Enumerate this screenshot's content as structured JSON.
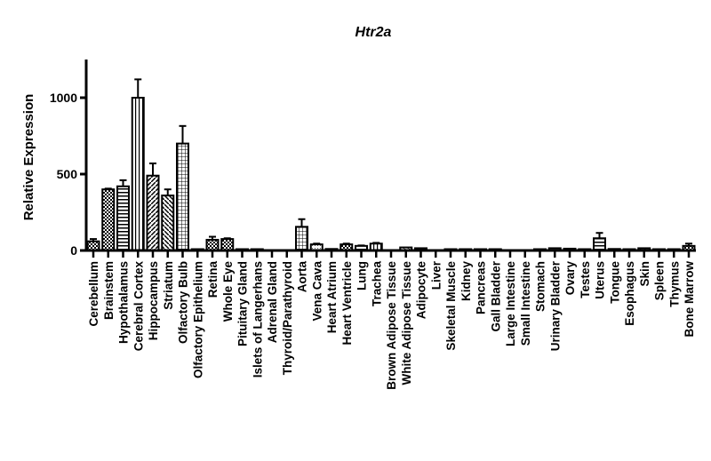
{
  "chart_data": {
    "type": "bar",
    "title": "Htr2a",
    "xlabel": "",
    "ylabel": "Relative Expression",
    "ylim": [
      0,
      1250
    ],
    "yticks": [
      0,
      500,
      1000
    ],
    "ytick_labels": [
      "0",
      "500",
      "1000"
    ],
    "grid": false,
    "categories": [
      "Cerebellum",
      "Brainstem",
      "Hypothalamus",
      "Cerebral Cortex",
      "Hippocampus",
      "Striatum",
      "Olfactory Bulb",
      "Olfactory Epithelium",
      "Retina",
      "Whole Eye",
      "Pituitary Gland",
      "Islets of Langerhans",
      "Adrenal Gland",
      "Thyroid/Parathyroid",
      "Aorta",
      "Vena Cava",
      "Heart Atrium",
      "Heart Ventricle",
      "Lung",
      "Trachea",
      "Brown Adipose Tissue",
      "White Adipose Tissue",
      "Adipocyte",
      "Liver",
      "Skeletal Muscle",
      "Kidney",
      "Pancreas",
      "Gall Bladder",
      "Large Intestine",
      "Small Intestine",
      "Stomach",
      "Urinary Bladder",
      "Ovary",
      "Testes",
      "Uterus",
      "Tongue",
      "Esophagus",
      "Skin",
      "Spleen",
      "Thymus",
      "Bone Marrow"
    ],
    "values": [
      60,
      400,
      420,
      1000,
      490,
      360,
      700,
      2,
      70,
      75,
      2,
      2,
      0,
      0,
      155,
      40,
      10,
      40,
      30,
      45,
      0,
      20,
      15,
      0,
      5,
      3,
      3,
      3,
      0,
      0,
      3,
      15,
      12,
      2,
      80,
      10,
      5,
      15,
      5,
      5,
      30
    ],
    "errors": [
      15,
      5,
      40,
      120,
      80,
      40,
      115,
      1,
      20,
      5,
      1,
      1,
      0,
      0,
      50,
      5,
      2,
      5,
      3,
      5,
      0,
      5,
      3,
      0,
      2,
      1,
      1,
      1,
      0,
      0,
      1,
      3,
      3,
      1,
      35,
      2,
      1,
      3,
      1,
      1,
      15
    ]
  }
}
